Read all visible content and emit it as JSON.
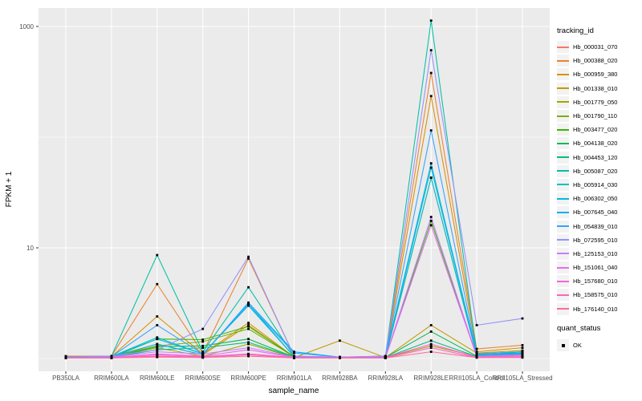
{
  "style_colors": {
    "panel_background": "#EBEBEB",
    "grid_line": "#FFFFFF",
    "legend_key_background": "#F2F2F2",
    "tick_label_color": "#4D4D4D",
    "axis_tick_color": "#333333",
    "point_color": "#000000"
  },
  "legend": {
    "tracking_title": "tracking_id",
    "quant_title": "quant_status",
    "quant_label": "OK"
  },
  "chart_data": {
    "type": "line",
    "title": "",
    "xlabel": "sample_name",
    "ylabel": "FPKM + 1",
    "y_scale": "log10",
    "legend_position": "right",
    "grid": "on",
    "y_breaks": [
      {
        "value": 10,
        "label": "10"
      },
      {
        "value": 1000,
        "label": "1000"
      }
    ],
    "y_minor_breaks": [
      1,
      100
    ],
    "ylim_log": [
      0.82,
      1470
    ],
    "categories": [
      "PB350LA",
      "RRIM600LA",
      "RRIM600LE",
      "RRIM600SE",
      "RRIM600PE",
      "RRIM901LA",
      "RRIM928BA",
      "RRIM928LA",
      "RRIM928LE",
      "RRII105LA_Control",
      "RRII105LA_Stressed"
    ],
    "series": [
      {
        "name": "Hb_000031_070",
        "color": "#F8766D",
        "values": [
          1.02,
          1.02,
          1.05,
          1.02,
          1.1,
          1.02,
          1.02,
          1.02,
          1.3,
          1.05,
          1.08
        ]
      },
      {
        "name": "Hb_000388_020",
        "color": "#EA8331",
        "values": [
          1.05,
          1.05,
          4.7,
          1.12,
          8.0,
          1.05,
          1.02,
          1.05,
          380,
          1.22,
          1.32
        ]
      },
      {
        "name": "Hb_000959_380",
        "color": "#D89000",
        "values": [
          1.03,
          1.04,
          2.4,
          1.1,
          2.1,
          1.03,
          1.02,
          1.03,
          235,
          1.15,
          1.25
        ]
      },
      {
        "name": "Hb_001338_010",
        "color": "#C09B00",
        "values": [
          1.02,
          1.02,
          1.35,
          1.08,
          2.0,
          1.02,
          1.45,
          1.02,
          2.0,
          1.12,
          1.18
        ]
      },
      {
        "name": "Hb_001779_050",
        "color": "#A3A500",
        "values": [
          1.03,
          1.03,
          1.25,
          1.05,
          1.35,
          1.02,
          1.02,
          1.02,
          1.3,
          1.05,
          1.1
        ]
      },
      {
        "name": "Hb_001790_110",
        "color": "#7CAE00",
        "values": [
          1.02,
          1.03,
          1.3,
          1.42,
          1.85,
          1.04,
          1.02,
          1.02,
          43,
          1.06,
          1.12
        ]
      },
      {
        "name": "Hb_003477_020",
        "color": "#39B600",
        "values": [
          1.02,
          1.02,
          1.5,
          1.48,
          1.95,
          1.04,
          1.02,
          1.02,
          17.5,
          1.05,
          1.15
        ]
      },
      {
        "name": "Hb_004138_020",
        "color": "#00BB4E",
        "values": [
          1.02,
          1.02,
          1.28,
          1.3,
          1.5,
          1.03,
          1.02,
          1.02,
          1.75,
          1.05,
          1.1
        ]
      },
      {
        "name": "Hb_004453_120",
        "color": "#00BF7D",
        "values": [
          1.02,
          1.02,
          1.2,
          1.25,
          1.4,
          1.03,
          1.02,
          1.02,
          1.45,
          1.04,
          1.08
        ]
      },
      {
        "name": "Hb_005087_020",
        "color": "#00C1A3",
        "values": [
          1.04,
          1.05,
          8.6,
          1.15,
          4.4,
          1.05,
          1.03,
          1.05,
          1130,
          1.1,
          1.15
        ]
      },
      {
        "name": "Hb_005914_030",
        "color": "#00BFC4",
        "values": [
          1.03,
          1.04,
          1.55,
          1.1,
          3.1,
          1.04,
          1.02,
          1.04,
          53,
          1.08,
          1.1
        ]
      },
      {
        "name": "Hb_006302_050",
        "color": "#00BAE0",
        "values": [
          1.03,
          1.04,
          1.5,
          1.1,
          3.0,
          1.04,
          1.02,
          1.04,
          43,
          1.07,
          1.1
        ]
      },
      {
        "name": "Hb_007645_040",
        "color": "#00B0F6",
        "values": [
          1.03,
          1.04,
          1.35,
          1.08,
          3.2,
          1.15,
          1.03,
          1.04,
          58,
          1.08,
          1.12
        ]
      },
      {
        "name": "Hb_054839_010",
        "color": "#35A2FF",
        "values": [
          1.03,
          1.04,
          2.0,
          1.1,
          3.1,
          1.12,
          1.03,
          1.04,
          115,
          1.1,
          1.15
        ]
      },
      {
        "name": "Hb_072595_010",
        "color": "#9590FF",
        "values": [
          1.03,
          1.05,
          1.2,
          1.85,
          8.3,
          1.05,
          1.03,
          1.05,
          610,
          2.0,
          2.3
        ]
      },
      {
        "name": "Hb_125153_010",
        "color": "#C77CFF",
        "values": [
          1.02,
          1.03,
          1.15,
          1.1,
          1.25,
          1.03,
          1.02,
          1.03,
          19,
          1.05,
          1.08
        ]
      },
      {
        "name": "Hb_151061_040",
        "color": "#E76BF3",
        "values": [
          1.02,
          1.02,
          1.1,
          1.05,
          1.2,
          1.02,
          1.02,
          1.02,
          16,
          1.04,
          1.06
        ]
      },
      {
        "name": "Hb_157680_010",
        "color": "#FA62DB",
        "values": [
          1.02,
          1.02,
          1.08,
          1.04,
          1.1,
          1.02,
          1.02,
          1.02,
          1.35,
          1.03,
          1.05
        ]
      },
      {
        "name": "Hb_158575_010",
        "color": "#FF62BC",
        "values": [
          1.01,
          1.01,
          1.05,
          1.03,
          1.08,
          1.01,
          1.01,
          1.01,
          1.25,
          1.02,
          1.03
        ]
      },
      {
        "name": "Hb_176140_010",
        "color": "#FF6A98",
        "values": [
          1.01,
          1.01,
          1.03,
          1.02,
          1.05,
          1.01,
          1.01,
          1.01,
          1.15,
          1.02,
          1.02
        ]
      }
    ],
    "quant_status_series": [
      {
        "label": "OK",
        "marker": "black-square",
        "applies_to": "all points"
      }
    ]
  }
}
